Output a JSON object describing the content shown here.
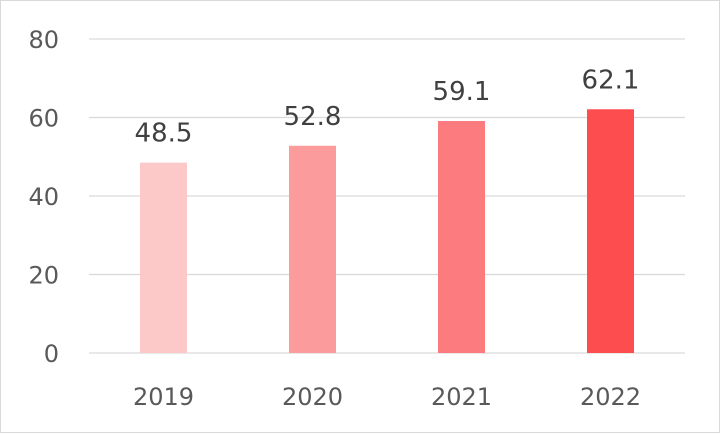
{
  "chart_data": {
    "type": "bar",
    "categories": [
      "2019",
      "2020",
      "2021",
      "2022"
    ],
    "values": [
      48.5,
      52.8,
      59.1,
      62.1
    ],
    "data_labels": [
      "48.5",
      "52.8",
      "59.1",
      "62.1"
    ],
    "ylim": [
      0,
      80
    ],
    "y_ticks": [
      "0",
      "20",
      "40",
      "60",
      "80"
    ],
    "grid": true,
    "legend": "none",
    "bar_colors": [
      "#fcc8c8",
      "#fb9b9b",
      "#fb7b7e",
      "#fe4d4f"
    ],
    "colors": {
      "gridline": "#d9d9d9",
      "tick_text": "#595959",
      "label_text": "#404040"
    }
  }
}
